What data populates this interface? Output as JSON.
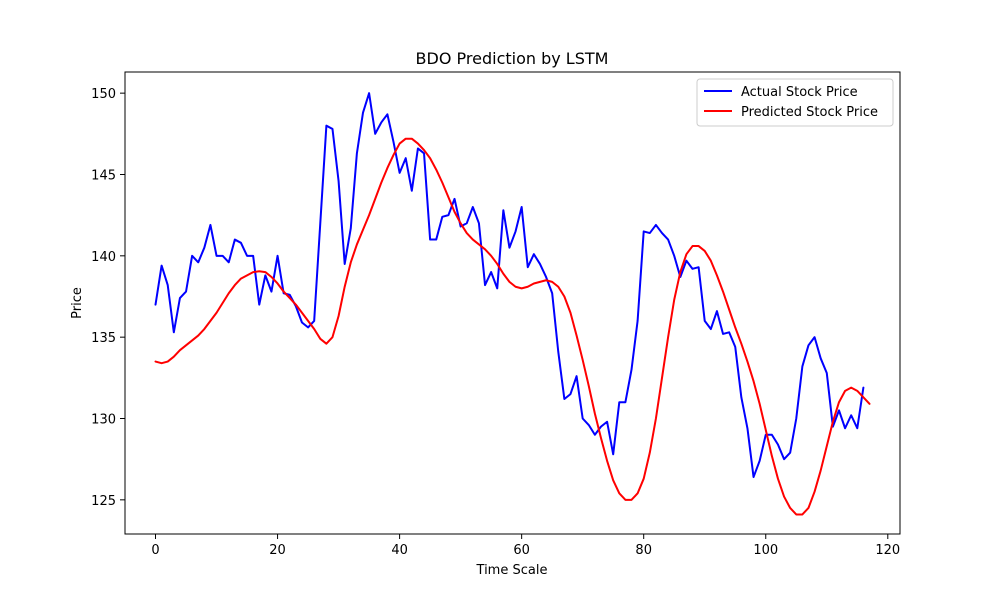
{
  "chart_data": {
    "type": "line",
    "title": "BDO Prediction by LSTM",
    "xlabel": "Time Scale",
    "ylabel": "Price",
    "xlim": [
      -5,
      122
    ],
    "ylim": [
      122.9,
      151.3
    ],
    "xticks": [
      0,
      20,
      40,
      60,
      80,
      100,
      120
    ],
    "yticks": [
      125,
      130,
      135,
      140,
      145,
      150
    ],
    "grid": false,
    "legend_position": "top-right",
    "series": [
      {
        "name": "Actual Stock Price",
        "color": "#0000ff",
        "values": [
          137.0,
          139.4,
          138.2,
          135.3,
          137.4,
          137.8,
          140.0,
          139.6,
          140.5,
          141.9,
          140.0,
          140.0,
          139.6,
          141.0,
          140.8,
          140.0,
          140.0,
          137.0,
          138.8,
          137.8,
          140.0,
          137.7,
          137.6,
          136.9,
          135.9,
          135.6,
          136.0,
          142.0,
          148.0,
          147.8,
          144.6,
          139.5,
          141.7,
          146.3,
          148.8,
          150.0,
          147.5,
          148.2,
          148.7,
          147.0,
          145.1,
          146.0,
          144.0,
          146.6,
          146.3,
          141.0,
          141.0,
          142.4,
          142.5,
          143.5,
          141.8,
          142.0,
          143.0,
          142.0,
          138.2,
          139.0,
          138.0,
          142.8,
          140.5,
          141.5,
          143.0,
          139.3,
          140.1,
          139.5,
          138.7,
          137.7,
          134.1,
          131.2,
          131.5,
          132.6,
          130.0,
          129.6,
          129.0,
          129.5,
          129.8,
          127.8,
          131.0,
          131.0,
          133.0,
          136.0,
          141.5,
          141.4,
          141.9,
          141.4,
          141.0,
          140.0,
          138.7,
          139.7,
          139.2,
          139.3,
          136.0,
          135.5,
          136.6,
          135.2,
          135.3,
          134.4,
          131.3,
          129.4,
          126.4,
          127.4,
          129.0,
          129.0,
          128.4,
          127.5,
          127.9,
          130.0,
          133.2,
          134.5,
          135.0,
          133.7,
          132.8,
          129.5,
          130.5,
          129.4,
          130.2,
          129.4,
          131.9
        ]
      },
      {
        "name": "Predicted Stock Price",
        "color": "#ff0000",
        "values": [
          133.5,
          133.4,
          133.5,
          133.8,
          134.2,
          134.5,
          134.8,
          135.1,
          135.5,
          136.0,
          136.5,
          137.1,
          137.7,
          138.2,
          138.6,
          138.8,
          139.0,
          139.05,
          139.0,
          138.7,
          138.3,
          137.8,
          137.4,
          137.0,
          136.5,
          136.0,
          135.5,
          134.9,
          134.6,
          135.0,
          136.3,
          138.1,
          139.6,
          140.7,
          141.6,
          142.5,
          143.5,
          144.5,
          145.4,
          146.2,
          146.9,
          147.2,
          147.2,
          146.9,
          146.5,
          146.0,
          145.3,
          144.5,
          143.6,
          142.7,
          142.0,
          141.4,
          141.0,
          140.7,
          140.4,
          140.0,
          139.5,
          138.9,
          138.4,
          138.1,
          138.0,
          138.1,
          138.3,
          138.4,
          138.5,
          138.4,
          138.1,
          137.5,
          136.5,
          135.1,
          133.6,
          132.0,
          130.3,
          128.8,
          127.4,
          126.2,
          125.4,
          125.0,
          125.0,
          125.4,
          126.3,
          127.9,
          130.0,
          132.5,
          135.0,
          137.3,
          139.0,
          140.1,
          140.6,
          140.6,
          140.3,
          139.7,
          138.8,
          137.8,
          136.7,
          135.6,
          134.6,
          133.5,
          132.3,
          130.9,
          129.3,
          127.7,
          126.3,
          125.2,
          124.5,
          124.1,
          124.1,
          124.5,
          125.5,
          126.8,
          128.3,
          129.8,
          131.0,
          131.7,
          131.9,
          131.7,
          131.3,
          130.9
        ]
      }
    ]
  }
}
